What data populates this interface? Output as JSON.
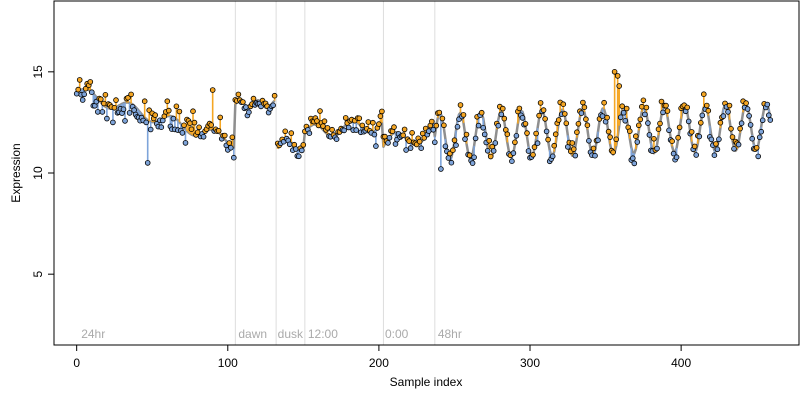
{
  "chart_data": {
    "type": "scatter",
    "title": "",
    "xlabel": "Sample index",
    "ylabel": "Expression",
    "xlim": [
      -15,
      478
    ],
    "ylim": [
      1.5,
      18.5
    ],
    "x_ticks": [
      0,
      100,
      200,
      300,
      400
    ],
    "y_ticks": [
      5,
      10,
      15
    ],
    "grid": false,
    "legend": "none",
    "phase_lines": [
      105,
      132,
      151,
      203,
      237
    ],
    "phase_labels": [
      {
        "x": 3,
        "text": "24hr"
      },
      {
        "x": 107,
        "text": "dawn"
      },
      {
        "x": 133,
        "text": "dusk"
      },
      {
        "x": 153,
        "text": "12:00"
      },
      {
        "x": 204,
        "text": "0:00"
      },
      {
        "x": 239,
        "text": "48hr"
      }
    ],
    "colors": {
      "fitted_line": "#8f8f8f",
      "above_point": "#f5a623",
      "below_point": "#7ea4da",
      "phase_line": "#dddddd",
      "phase_text": "#aaaaaa"
    },
    "segments": [
      {
        "from": 0,
        "to": 105,
        "start": 14.0,
        "end": 11.5,
        "amp": 0.3,
        "period": 28,
        "noise": 0.55
      },
      {
        "from": 105,
        "to": 132,
        "start": 13.4,
        "end": 13.4,
        "amp": 0.2,
        "period": 12,
        "noise": 0.3
      },
      {
        "from": 133,
        "to": 151,
        "start": 11.2,
        "end": 11.6,
        "amp": 0.4,
        "period": 20,
        "noise": 0.35
      },
      {
        "from": 151,
        "to": 203,
        "start": 12.0,
        "end": 12.4,
        "amp": 0.35,
        "period": 25,
        "noise": 0.4
      },
      {
        "from": 203,
        "to": 237,
        "start": 11.3,
        "end": 12.2,
        "amp": 0.5,
        "period": 30,
        "noise": 0.45
      },
      {
        "from": 237,
        "to": 460,
        "start": 11.8,
        "end": 12.3,
        "amp": 1.15,
        "period": 13.5,
        "noise": 0.4
      }
    ],
    "highlight_points": [
      {
        "x": 90,
        "y": 14.1
      },
      {
        "x": 356,
        "y": 15.0
      },
      {
        "x": 358,
        "y": 14.8
      },
      {
        "x": 359,
        "y": 14.3
      },
      {
        "x": 47,
        "y": 10.5
      },
      {
        "x": 241,
        "y": 10.2
      }
    ]
  }
}
